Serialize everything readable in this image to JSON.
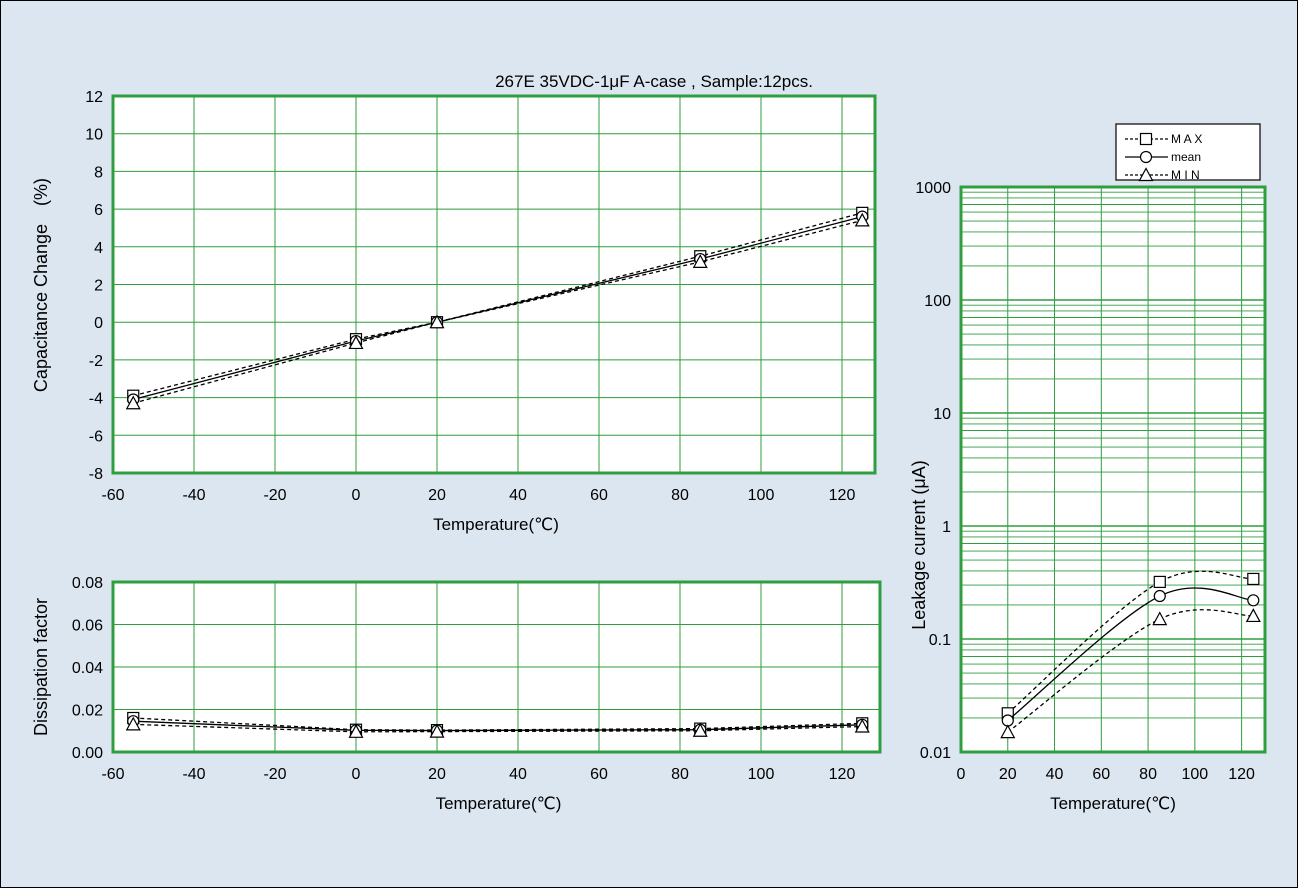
{
  "colors": {
    "background": "#dce6f1",
    "plot_background": "#ffffff",
    "grid": "#2e9e3e",
    "series": "#000000"
  },
  "legend": {
    "entries": [
      "M A X",
      "mean",
      "M I N"
    ],
    "markers": [
      "square",
      "circle",
      "triangle"
    ],
    "styles": [
      "dashed",
      "solid",
      "dashed"
    ],
    "placement": "top-right"
  },
  "chart_data": [
    {
      "id": "capacitance",
      "type": "line",
      "title": "267E 35VDC-1μF A-case , Sample:12pcs.",
      "xlabel": "Temperature(℃)",
      "ylabel": "Capacitance Change　(%)",
      "xlim": [
        -60,
        120
      ],
      "xticks": [
        "-60",
        "-40",
        "-20",
        "0",
        "20",
        "40",
        "60",
        "80",
        "100",
        "120"
      ],
      "ylim": [
        -8,
        12
      ],
      "yticks": [
        "-8",
        "-6",
        "-4",
        "-2",
        "0",
        "2",
        "4",
        "6",
        "8",
        "10",
        "12"
      ],
      "grid": true,
      "x": [
        -55,
        0,
        20,
        85,
        125
      ],
      "series": [
        {
          "name": "M A X",
          "marker": "square",
          "style": "dashed",
          "values": [
            -3.9,
            -0.9,
            0.0,
            3.5,
            5.8
          ]
        },
        {
          "name": "mean",
          "marker": "circle",
          "style": "solid",
          "values": [
            -4.1,
            -1.0,
            0.0,
            3.35,
            5.6
          ]
        },
        {
          "name": "M I N",
          "marker": "triangle",
          "style": "dashed",
          "values": [
            -4.3,
            -1.1,
            0.0,
            3.2,
            5.4
          ]
        }
      ]
    },
    {
      "id": "dissipation",
      "type": "line",
      "xlabel": "Temperature(℃)",
      "ylabel": "Dissipation factor",
      "xlim": [
        -60,
        120
      ],
      "xticks": [
        "-60",
        "-40",
        "-20",
        "0",
        "20",
        "40",
        "60",
        "80",
        "100",
        "120"
      ],
      "ylim": [
        0,
        0.08
      ],
      "yticks": [
        "0.00",
        "0.02",
        "0.04",
        "0.06",
        "0.08"
      ],
      "grid": true,
      "x": [
        -55,
        0,
        20,
        85,
        125
      ],
      "series": [
        {
          "name": "M A X",
          "marker": "square",
          "style": "dashed",
          "values": [
            0.016,
            0.0105,
            0.0103,
            0.011,
            0.0135
          ]
        },
        {
          "name": "mean",
          "marker": "circle",
          "style": "solid",
          "values": [
            0.0145,
            0.0102,
            0.0101,
            0.0105,
            0.0128
          ]
        },
        {
          "name": "M I N",
          "marker": "triangle",
          "style": "dashed",
          "values": [
            0.013,
            0.0095,
            0.0096,
            0.01,
            0.012
          ]
        }
      ]
    },
    {
      "id": "leakage",
      "type": "line",
      "xlabel": "Temperature(℃)",
      "ylabel": "Leakage current  (μA)",
      "xlim": [
        0,
        130
      ],
      "xticks": [
        "0",
        "20",
        "40",
        "60",
        "80",
        "100",
        "120"
      ],
      "yscale": "log",
      "ylim": [
        0.01,
        1000
      ],
      "yticks": [
        "0.01",
        "0.1",
        "1",
        "10",
        "100",
        "1000"
      ],
      "grid": true,
      "x": [
        20,
        85,
        125
      ],
      "series": [
        {
          "name": "M A X",
          "marker": "square",
          "style": "dashed",
          "smooth": true,
          "values": [
            0.022,
            0.32,
            0.34
          ]
        },
        {
          "name": "mean",
          "marker": "circle",
          "style": "solid",
          "smooth": true,
          "values": [
            0.019,
            0.24,
            0.22
          ]
        },
        {
          "name": "M I N",
          "marker": "triangle",
          "style": "dashed",
          "smooth": true,
          "values": [
            0.015,
            0.15,
            0.16
          ]
        }
      ]
    }
  ]
}
